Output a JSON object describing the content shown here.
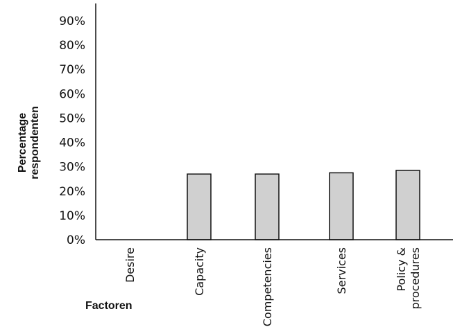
{
  "chart_data": {
    "type": "bar",
    "categories": [
      "Desire",
      "Capacity",
      "Competencies",
      "Services",
      "Policy & procedures"
    ],
    "category_lines": [
      [
        "Desire"
      ],
      [
        "Capacity"
      ],
      [
        "Competencies"
      ],
      [
        "Services"
      ],
      [
        "Policy &",
        "procedures"
      ]
    ],
    "values": [
      0,
      27,
      27,
      27.5,
      28.5
    ],
    "ylabel": "Percentage respondenten",
    "ylabel_lines": [
      "Percentage",
      "respondenten"
    ],
    "xlabel": "Factoren",
    "y_ticks": [
      {
        "value": 0,
        "label": "0%"
      },
      {
        "value": 10,
        "label": "10%"
      },
      {
        "value": 20,
        "label": "20%"
      },
      {
        "value": 30,
        "label": "30%"
      },
      {
        "value": 40,
        "label": "40%"
      },
      {
        "value": 50,
        "label": "50%"
      },
      {
        "value": 60,
        "label": "60%"
      },
      {
        "value": 70,
        "label": "70%"
      },
      {
        "value": 80,
        "label": "80%"
      },
      {
        "value": 90,
        "label": "90%"
      }
    ],
    "ylim": [
      0,
      90
    ],
    "grid": false,
    "colors": {
      "bar_fill": "#d0d0d0",
      "bar_stroke": "#111111"
    }
  }
}
